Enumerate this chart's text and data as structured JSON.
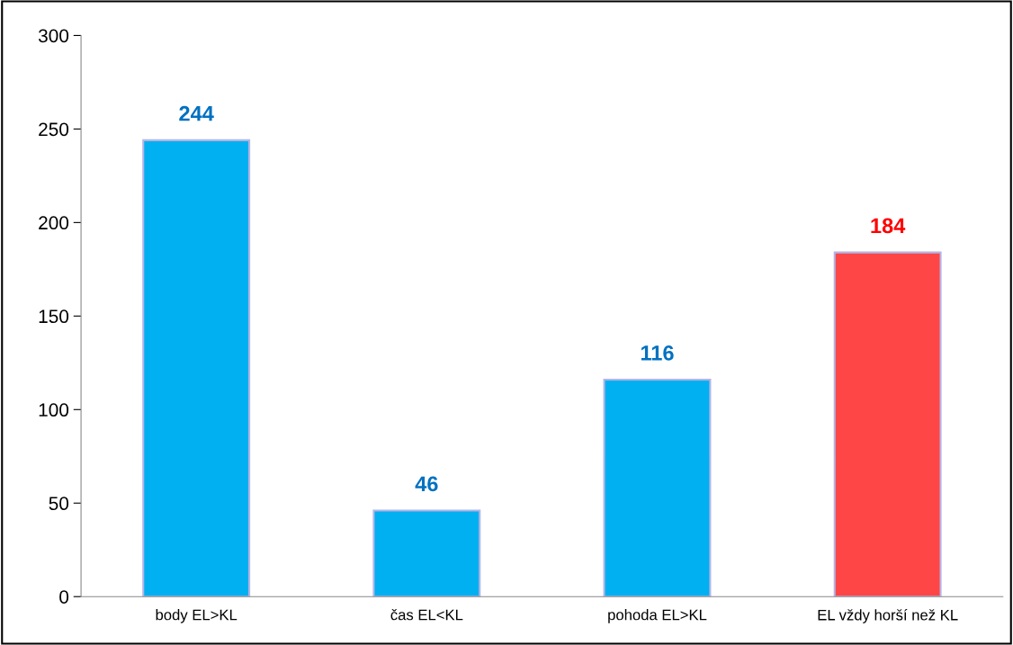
{
  "chart_data": {
    "type": "bar",
    "categories": [
      "body EL>KL",
      "čas EL<KL",
      "pohoda EL>KL",
      "EL vždy horší než KL"
    ],
    "values": [
      244,
      46,
      116,
      184
    ],
    "colors": [
      "#00b0f0",
      "#00b0f0",
      "#00b0f0",
      "#ff4646"
    ],
    "ylim": [
      0,
      300
    ],
    "yticks": [
      0,
      50,
      100,
      150,
      200,
      250,
      300
    ],
    "data_labels": true,
    "grid": false,
    "legend": false
  }
}
